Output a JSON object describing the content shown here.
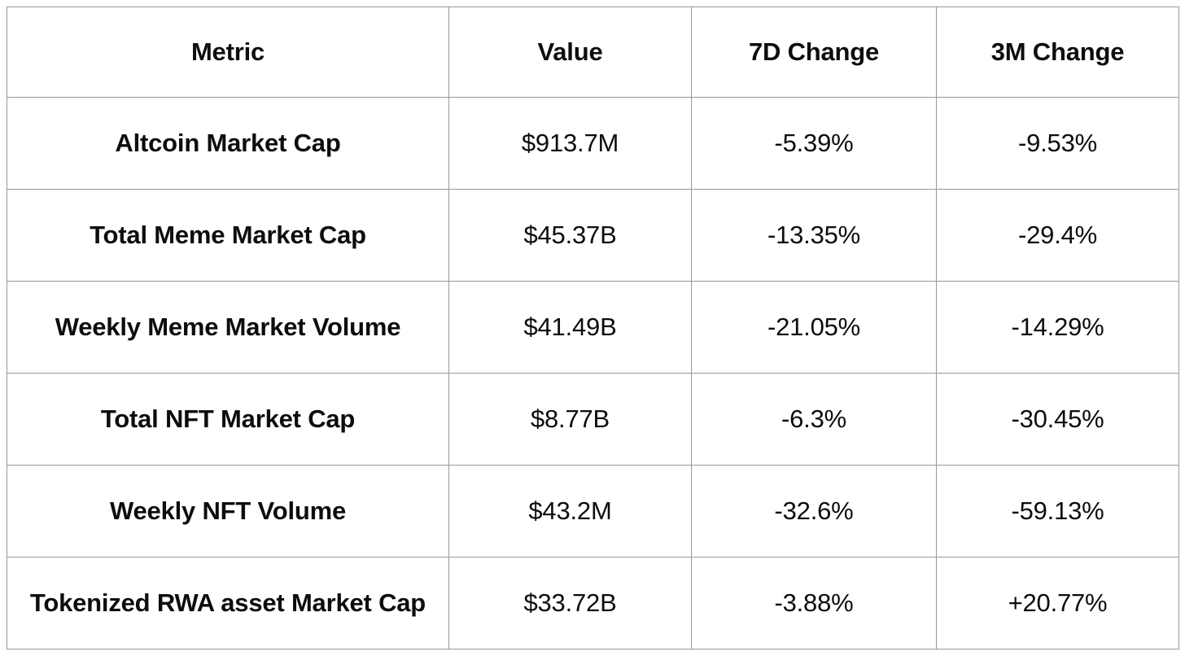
{
  "table": {
    "headers": [
      "Metric",
      "Value",
      "7D Change",
      "3M Change"
    ],
    "rows": [
      {
        "metric": "Altcoin Market Cap",
        "value": "$913.7M",
        "change_7d": "-5.39%",
        "change_3m": "-9.53%"
      },
      {
        "metric": "Total Meme Market Cap",
        "value": "$45.37B",
        "change_7d": "-13.35%",
        "change_3m": "-29.4%"
      },
      {
        "metric": "Weekly Meme Market Volume",
        "value": "$41.49B",
        "change_7d": "-21.05%",
        "change_3m": "-14.29%"
      },
      {
        "metric": "Total NFT Market Cap",
        "value": "$8.77B",
        "change_7d": "-6.3%",
        "change_3m": "-30.45%"
      },
      {
        "metric": "Weekly NFT Volume",
        "value": "$43.2M",
        "change_7d": "-32.6%",
        "change_3m": "-59.13%"
      },
      {
        "metric": "Tokenized RWA asset Market Cap",
        "value": "$33.72B",
        "change_7d": "-3.88%",
        "change_3m": "+20.77%"
      }
    ]
  },
  "chart_data": {
    "type": "table",
    "title": "",
    "columns": [
      "Metric",
      "Value",
      "7D Change",
      "3M Change"
    ],
    "rows": [
      [
        "Altcoin Market Cap",
        "$913.7M",
        "-5.39%",
        "-9.53%"
      ],
      [
        "Total Meme Market Cap",
        "$45.37B",
        "-13.35%",
        "-29.4%"
      ],
      [
        "Weekly Meme Market Volume",
        "$41.49B",
        "-21.05%",
        "-14.29%"
      ],
      [
        "Total NFT Market Cap",
        "$8.77B",
        "-6.3%",
        "-30.45%"
      ],
      [
        "Weekly NFT Volume",
        "$43.2M",
        "-32.6%",
        "-59.13%"
      ],
      [
        "Tokenized RWA asset Market Cap",
        "$33.72B",
        "-3.88%",
        "+20.77%"
      ]
    ],
    "values_numeric": {
      "value_usd": [
        913700000,
        45370000000,
        41490000000,
        8770000000,
        43200000,
        33720000000
      ],
      "change_7d_pct": [
        -5.39,
        -13.35,
        -21.05,
        -6.3,
        -32.6,
        -3.88
      ],
      "change_3m_pct": [
        -9.53,
        -29.4,
        -14.29,
        -30.45,
        -59.13,
        20.77
      ]
    },
    "layout_hints": {
      "header_bold": true,
      "first_column_bold": true,
      "grid": true,
      "grid_color": "#999999",
      "background": "#ffffff",
      "text_color": "#0d0d0d"
    }
  },
  "colors": {
    "background": "#ffffff",
    "grid": "#999999",
    "text": "#0d0d0d"
  }
}
